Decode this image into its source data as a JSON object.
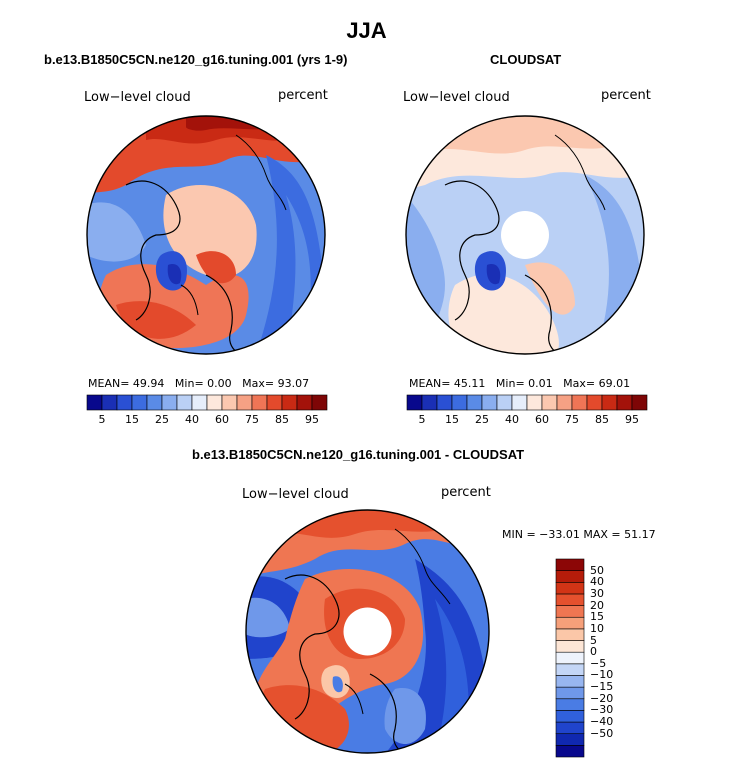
{
  "title": "JJA",
  "panels": [
    {
      "title": "b.e13.B1850C5CN.ne120_g16.tuning.001 (yrs 1-9)",
      "left_label": "Low−level cloud",
      "right_label": "percent",
      "mean_label": "MEAN=",
      "mean": "49.94",
      "min_label": "Min=",
      "min": "0.00",
      "max_label": "Max=",
      "max": "93.07"
    },
    {
      "title": "CLOUDSAT",
      "left_label": "Low−level cloud",
      "right_label": "percent",
      "mean_label": "MEAN=",
      "mean": "45.11",
      "min_label": "Min=",
      "min": "0.01",
      "max_label": "Max=",
      "max": "69.01"
    },
    {
      "title": "b.e13.B1850C5CN.ne120_g16.tuning.001 - CLOUDSAT",
      "left_label": "Low−level cloud",
      "right_label": "percent",
      "minmax": "MIN = −33.01  MAX =  51.17"
    }
  ],
  "colorbar_top": {
    "colors": [
      "#08088c",
      "#1a2fb5",
      "#2a50d4",
      "#3c6ce0",
      "#5a8be6",
      "#8aaeef",
      "#bad0f5",
      "#e6eefb",
      "#fde8dc",
      "#fbc8b0",
      "#f6a184",
      "#ef7556",
      "#e34a2c",
      "#c92a14",
      "#a3120a",
      "#7e0606"
    ],
    "tick_labels": [
      "5",
      "15",
      "25",
      "40",
      "60",
      "75",
      "85",
      "95"
    ]
  },
  "colorbar_diff": {
    "colors": [
      "#08088c",
      "#1028b0",
      "#2044cc",
      "#3060dc",
      "#4a7ce4",
      "#6f98ea",
      "#98b6f0",
      "#c4d6f6",
      "#eef3fc",
      "#fde6d6",
      "#fbc7a8",
      "#f6a07a",
      "#ef7652",
      "#e5512e",
      "#d23416",
      "#b51c0a",
      "#8c0606"
    ],
    "tick_labels": [
      "50",
      "40",
      "30",
      "20",
      "15",
      "10",
      "5",
      "0",
      "−5",
      "−10",
      "−15",
      "−20",
      "−30",
      "−40",
      "−50"
    ]
  },
  "icons": [
    "north-polar-map"
  ]
}
